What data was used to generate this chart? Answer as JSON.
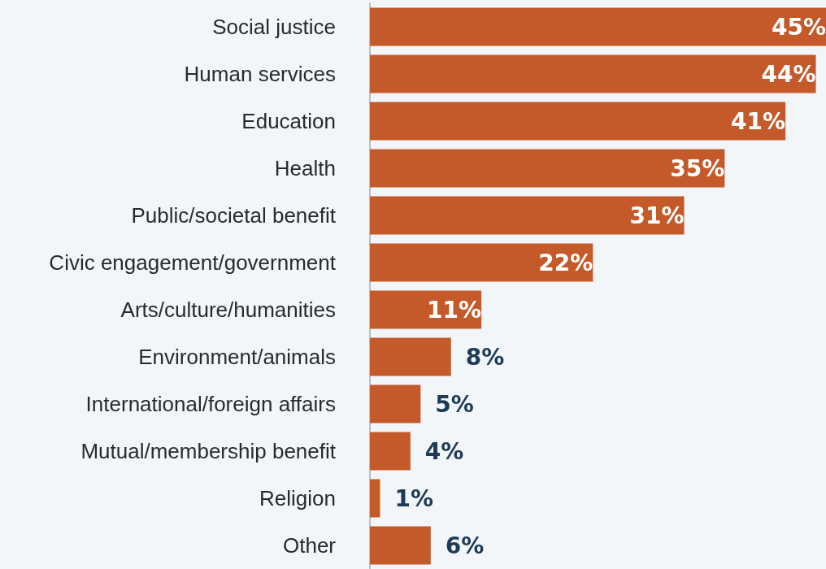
{
  "chart_data": {
    "type": "bar",
    "orientation": "horizontal",
    "categories": [
      "Social justice",
      "Human services",
      "Education",
      "Health",
      "Public/societal benefit",
      "Civic engagement/government",
      "Arts/culture/humanities",
      "Environment/animals",
      "International/foreign affairs",
      "Mutual/membership benefit",
      "Religion",
      "Other"
    ],
    "values": [
      45,
      44,
      41,
      35,
      31,
      22,
      11,
      8,
      5,
      4,
      1,
      6
    ],
    "value_labels": [
      "45%",
      "44%",
      "41%",
      "35%",
      "31%",
      "22%",
      "11%",
      "8%",
      "5%",
      "4%",
      "1%",
      "6%"
    ],
    "color": "#c4592a",
    "xlim": [
      0,
      45
    ],
    "grid": false
  }
}
